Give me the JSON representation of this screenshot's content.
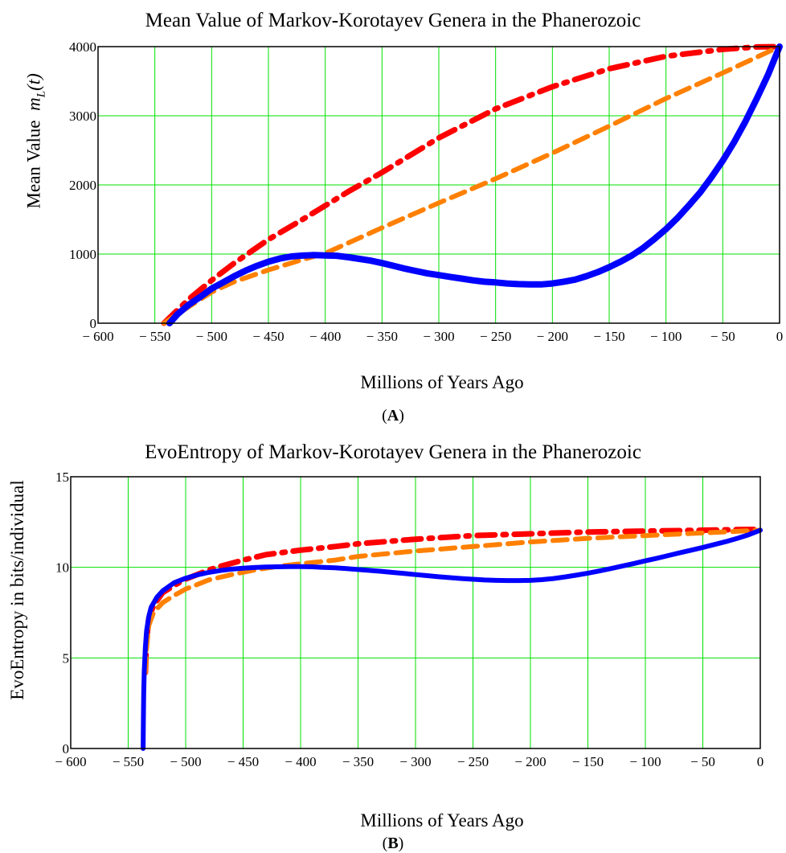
{
  "chart_data": [
    {
      "type": "line",
      "title": "Mean Value of Markov-Korotayev Genera in the Phanerozoic",
      "xlabel": "Millions of Years Ago",
      "ylabel": "Mean Value",
      "ylabel_math": "m_L(t)",
      "panel_label": "A",
      "xlim": [
        -600,
        0
      ],
      "ylim": [
        0,
        4000
      ],
      "xticks": [
        -600,
        -550,
        -500,
        -450,
        -400,
        -350,
        -300,
        -250,
        -200,
        -150,
        -100,
        -50,
        0
      ],
      "xtick_labels": [
        "− 600",
        "− 550",
        "− 500",
        "− 450",
        "− 400",
        "− 350",
        "− 300",
        "− 250",
        "− 200",
        "− 150",
        "− 100",
        "− 50",
        "0"
      ],
      "yticks": [
        0,
        1000,
        2000,
        3000,
        4000
      ],
      "ytick_labels": [
        "0",
        "1000",
        "2000",
        "3000",
        "4000"
      ],
      "grid": true,
      "series": [
        {
          "style": "dash-dot",
          "color": "#ff0000",
          "x": [
            -542,
            -520,
            -500,
            -480,
            -450,
            -420,
            -400,
            -380,
            -350,
            -300,
            -250,
            -200,
            -150,
            -100,
            -50,
            -20,
            0
          ],
          "y": [
            0,
            350,
            620,
            870,
            1210,
            1500,
            1700,
            1900,
            2180,
            2680,
            3100,
            3420,
            3680,
            3860,
            3960,
            3995,
            4000
          ]
        },
        {
          "style": "dashed",
          "color": "#ff8000",
          "x": [
            -542,
            -520,
            -500,
            -480,
            -450,
            -420,
            -400,
            -350,
            -300,
            -250,
            -200,
            -150,
            -100,
            -50,
            0
          ],
          "y": [
            0,
            240,
            450,
            600,
            770,
            920,
            1010,
            1380,
            1740,
            2090,
            2460,
            2850,
            3250,
            3620,
            4000
          ]
        },
        {
          "style": "solid",
          "color": "#0000ff",
          "x": [
            -537,
            -530,
            -520,
            -510,
            -500,
            -490,
            -480,
            -470,
            -460,
            -450,
            -440,
            -430,
            -420,
            -410,
            -400,
            -390,
            -380,
            -370,
            -360,
            -350,
            -340,
            -330,
            -320,
            -310,
            -300,
            -290,
            -280,
            -270,
            -260,
            -250,
            -240,
            -230,
            -220,
            -210,
            -200,
            -190,
            -180,
            -170,
            -160,
            -150,
            -140,
            -130,
            -120,
            -110,
            -100,
            -90,
            -80,
            -70,
            -60,
            -50,
            -40,
            -30,
            -20,
            -10,
            0
          ],
          "y": [
            0,
            130,
            270,
            380,
            500,
            590,
            680,
            760,
            830,
            890,
            935,
            965,
            978,
            985,
            980,
            975,
            955,
            930,
            905,
            870,
            830,
            790,
            755,
            720,
            695,
            670,
            645,
            620,
            600,
            590,
            575,
            565,
            560,
            560,
            575,
            600,
            630,
            680,
            740,
            810,
            890,
            980,
            1090,
            1220,
            1360,
            1520,
            1700,
            1890,
            2110,
            2350,
            2620,
            2920,
            3250,
            3600,
            4000
          ]
        }
      ]
    },
    {
      "type": "line",
      "title": "EvoEntropy of Markov-Korotayev Genera in the Phanerozoic",
      "xlabel": "Millions of Years Ago",
      "ylabel": "EvoEntropy in bits/individual",
      "panel_label": "B",
      "xlim": [
        -600,
        0
      ],
      "ylim": [
        0,
        15
      ],
      "xticks": [
        -600,
        -550,
        -500,
        -450,
        -400,
        -350,
        -300,
        -250,
        -200,
        -150,
        -100,
        -50,
        0
      ],
      "xtick_labels": [
        "− 600",
        "− 550",
        "− 500",
        "− 450",
        "− 400",
        "− 350",
        "− 300",
        "− 250",
        "− 200",
        "− 150",
        "− 100",
        "− 50",
        "0"
      ],
      "yticks": [
        0,
        5,
        10,
        15
      ],
      "ytick_labels": [
        "0",
        "5",
        "10",
        "15"
      ],
      "grid": true,
      "series": [
        {
          "style": "dash-dot",
          "color": "#ff0000",
          "x": [
            -535,
            -534,
            -532,
            -528,
            -520,
            -510,
            -500,
            -490,
            -480,
            -470,
            -450,
            -430,
            -400,
            -370,
            -350,
            -300,
            -250,
            -200,
            -150,
            -100,
            -50,
            0
          ],
          "y": [
            4.2,
            6.0,
            7.2,
            7.9,
            8.6,
            9.0,
            9.35,
            9.6,
            9.85,
            10.05,
            10.4,
            10.7,
            10.95,
            11.15,
            11.3,
            11.55,
            11.75,
            11.85,
            11.95,
            12.0,
            12.05,
            12.1
          ]
        },
        {
          "style": "dashed",
          "color": "#ff8000",
          "x": [
            -535,
            -534,
            -532,
            -528,
            -520,
            -510,
            -500,
            -490,
            -480,
            -460,
            -440,
            -420,
            -400,
            -370,
            -350,
            -300,
            -250,
            -200,
            -150,
            -100,
            -50,
            0
          ],
          "y": [
            4.2,
            5.6,
            6.8,
            7.5,
            8.05,
            8.45,
            8.8,
            9.05,
            9.3,
            9.6,
            9.85,
            10.05,
            10.2,
            10.4,
            10.6,
            10.9,
            11.15,
            11.4,
            11.6,
            11.75,
            11.9,
            12.05
          ]
        },
        {
          "style": "solid",
          "color": "#0000ff",
          "x": [
            -537,
            -536.8,
            -536.5,
            -536,
            -535,
            -534,
            -532,
            -530,
            -525,
            -520,
            -510,
            -500,
            -490,
            -480,
            -470,
            -460,
            -450,
            -440,
            -430,
            -420,
            -410,
            -400,
            -390,
            -380,
            -370,
            -360,
            -350,
            -340,
            -330,
            -320,
            -310,
            -300,
            -290,
            -280,
            -270,
            -260,
            -250,
            -240,
            -230,
            -220,
            -210,
            -200,
            -190,
            -180,
            -170,
            -160,
            -150,
            -140,
            -130,
            -120,
            -110,
            -100,
            -90,
            -80,
            -70,
            -60,
            -50,
            -40,
            -30,
            -20,
            -10,
            0
          ],
          "y": [
            0,
            1.5,
            3.0,
            4.3,
            5.6,
            6.5,
            7.3,
            7.8,
            8.35,
            8.7,
            9.15,
            9.4,
            9.58,
            9.72,
            9.82,
            9.9,
            9.95,
            9.99,
            10.02,
            10.03,
            10.04,
            10.04,
            10.03,
            10.0,
            9.97,
            9.93,
            9.88,
            9.83,
            9.78,
            9.72,
            9.66,
            9.6,
            9.54,
            9.48,
            9.43,
            9.38,
            9.34,
            9.3,
            9.28,
            9.27,
            9.27,
            9.28,
            9.32,
            9.38,
            9.47,
            9.57,
            9.68,
            9.8,
            9.93,
            10.07,
            10.21,
            10.36,
            10.5,
            10.65,
            10.8,
            10.95,
            11.1,
            11.26,
            11.42,
            11.6,
            11.8,
            12.05
          ]
        }
      ]
    }
  ]
}
